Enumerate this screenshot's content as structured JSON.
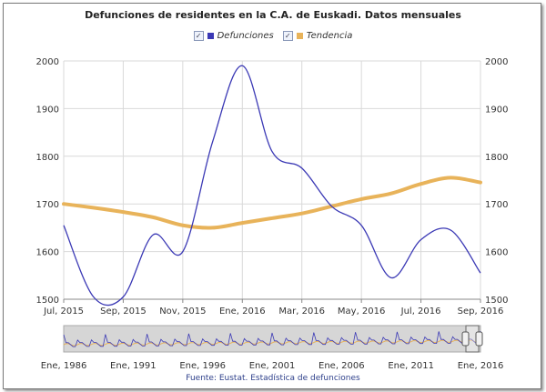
{
  "chart_data": {
    "type": "line",
    "title": "Defunciones de residentes en la C.A. de Euskadi. Datos mensuales",
    "x": [
      "Jul, 2015",
      "Ago, 2015",
      "Sep, 2015",
      "Oct, 2015",
      "Nov, 2015",
      "Dic, 2015",
      "Ene, 2016",
      "Feb, 2016",
      "Mar, 2016",
      "Abr, 2016",
      "May, 2016",
      "Jun, 2016",
      "Jul, 2016",
      "Ago, 2016",
      "Sep, 2016"
    ],
    "x_tick_labels": [
      "Jul, 2015",
      "Sep, 2015",
      "Nov, 2015",
      "Ene, 2016",
      "Mar, 2016",
      "May, 2016",
      "Jul, 2016",
      "Sep, 2016"
    ],
    "y_ticks": [
      "1500",
      "1600",
      "1700",
      "1800",
      "1900",
      "2000"
    ],
    "ylim": [
      1500,
      2000
    ],
    "grid": true,
    "legend_position": "top-center",
    "series": [
      {
        "name": "Defunciones",
        "color": "#3b39b5",
        "values": [
          1655,
          1505,
          1505,
          1635,
          1600,
          1830,
          1990,
          1810,
          1775,
          1695,
          1655,
          1545,
          1625,
          1645,
          1555
        ]
      },
      {
        "name": "Tendencia",
        "color": "#e8b35a",
        "values": [
          1700,
          1692,
          1683,
          1672,
          1655,
          1650,
          1660,
          1670,
          1680,
          1695,
          1710,
          1722,
          1742,
          1755,
          1745
        ]
      }
    ],
    "navigator": {
      "x_tick_labels": [
        "Ene, 1986",
        "Ene, 1991",
        "Ene, 1996",
        "Ene, 2001",
        "Ene, 2006",
        "Ene, 2011",
        "Ene, 2016"
      ]
    },
    "source": "Fuente: Eustat. Estadística de defunciones"
  },
  "legend_check": "✓"
}
